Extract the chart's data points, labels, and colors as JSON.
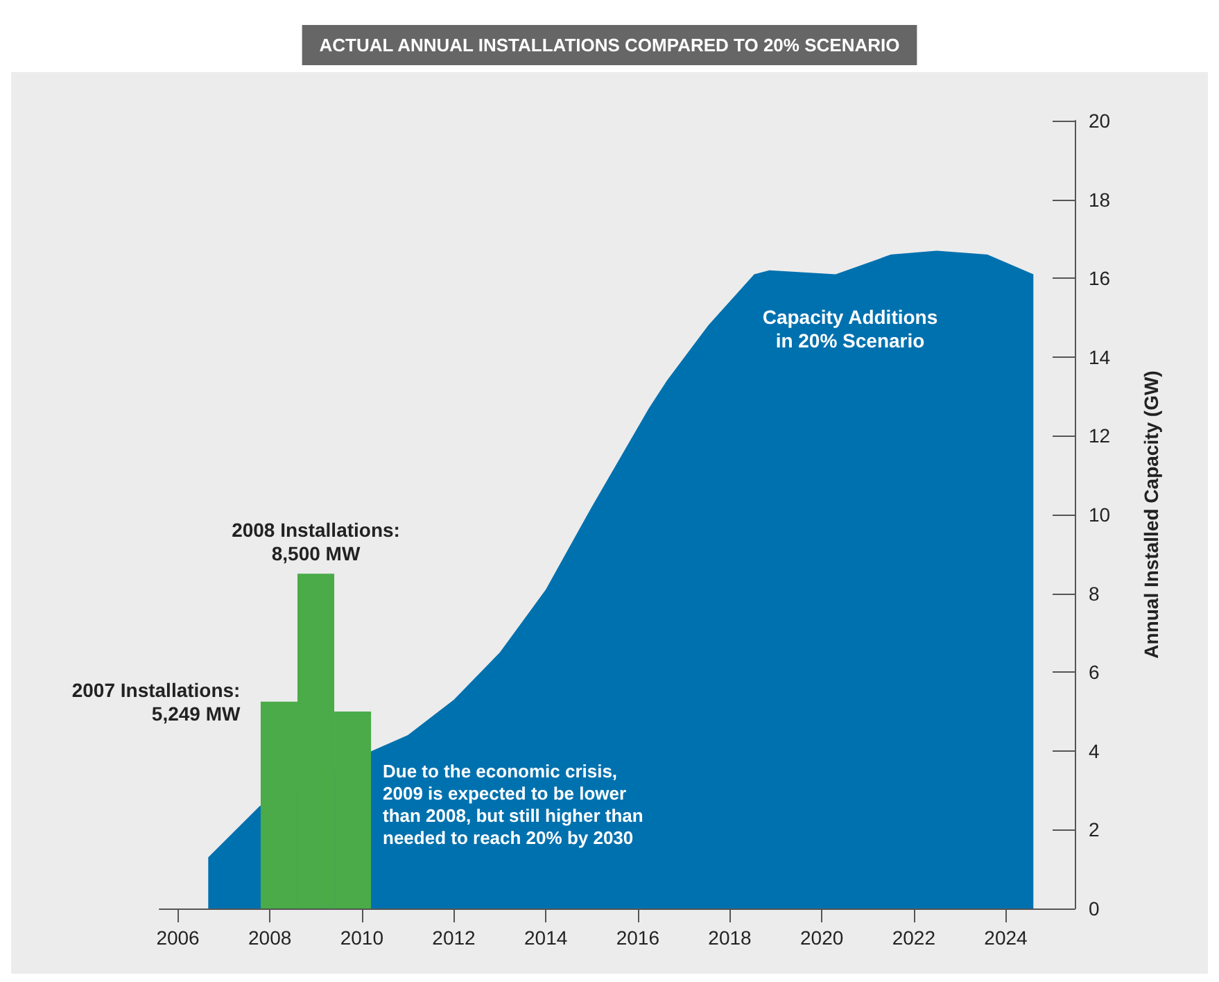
{
  "chart_data": {
    "type": "area",
    "title": "ACTUAL ANNUAL INSTALLATIONS COMPARED TO 20% SCENARIO",
    "ylabel": "Annual Installed Capacity (GW)",
    "xlim": [
      2005.6,
      2025.5
    ],
    "xticks": [
      2006,
      2008,
      2010,
      2012,
      2014,
      2016,
      2018,
      2020,
      2022,
      2024
    ],
    "ylim": [
      0,
      20
    ],
    "yticks": [
      0,
      2,
      4,
      6,
      8,
      10,
      12,
      14,
      16,
      18,
      20
    ],
    "grid": false,
    "series": [
      {
        "color": "#0071af",
        "x": [
          2006.66,
          2007.78,
          2010.22,
          2011,
          2012,
          2013,
          2014,
          2015,
          2016.24,
          2016.63,
          2017.53,
          2018.53,
          2018.86,
          2020.3,
          2021.5,
          2022.5,
          2023.6,
          2024.6
        ],
        "values": [
          1.3,
          2.6,
          4.0,
          4.4,
          5.3,
          6.5,
          8.1,
          10.2,
          12.7,
          13.4,
          14.8,
          16.1,
          16.2,
          16.1,
          16.6,
          16.7,
          16.6,
          16.1
        ]
      },
      {
        "type": "bar",
        "color": "#4aab48",
        "x": [
          2008.2,
          2009.0,
          2009.8
        ],
        "values": [
          5.249,
          8.5,
          5.0
        ]
      }
    ],
    "annotations": [
      {
        "text": "2007 Installations:\n5,249 MW",
        "x": 2008.2,
        "y": 5.249
      },
      {
        "text": "2008 Installations:\n8,500 MW",
        "x": 2009.0,
        "y": 8.5
      },
      "Capacity Additions\nin 20% Scenario",
      "Due to the economic crisis,\n2009 is expected to be lower\nthan 2008, but still higher than\nneeded to reach 20% by 2030"
    ]
  }
}
